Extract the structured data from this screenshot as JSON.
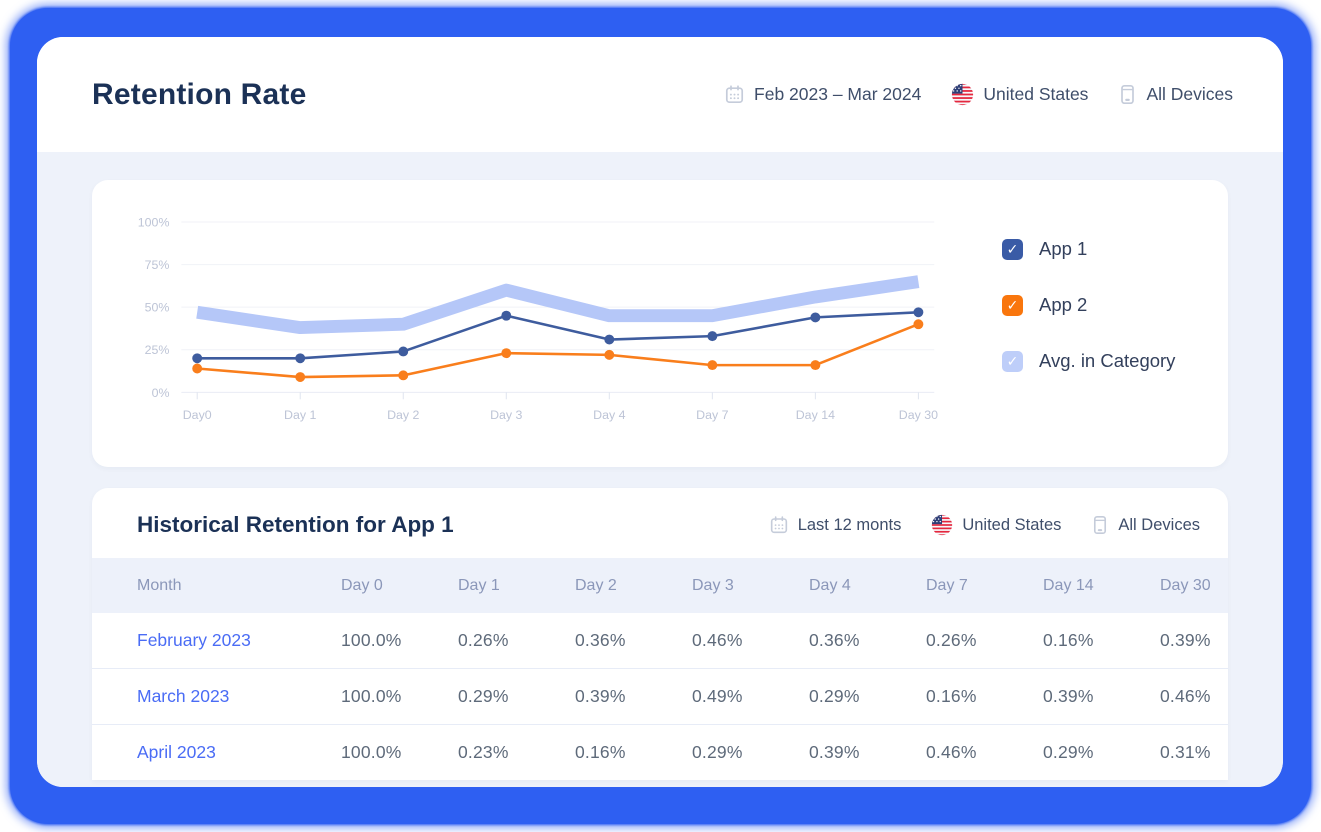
{
  "header": {
    "title": "Retention Rate",
    "filters": [
      {
        "icon": "calendar-icon",
        "label": "Feb 2023 – Mar 2024"
      },
      {
        "icon": "us-flag-icon",
        "label": "United States"
      },
      {
        "icon": "mobile-icon",
        "label": "All Devices"
      }
    ]
  },
  "chart_data": {
    "type": "line",
    "x_labels": [
      "Day0",
      "Day 1",
      "Day 2",
      "Day 3",
      "Day 4",
      "Day 7",
      "Day 14",
      "Day 30"
    ],
    "y_ticks": [
      "100%",
      "75%",
      "50%",
      "25%",
      "0%"
    ],
    "y_tick_values": [
      100,
      75,
      50,
      25,
      0
    ],
    "ylim": [
      0,
      100
    ],
    "grid": "horizontal",
    "legend_position": "right",
    "series": [
      {
        "name": "App 1",
        "style": "line-dots",
        "checked": true,
        "color": "#3E5C9E",
        "checkbox_color": "#3A5BA6",
        "values": [
          20,
          20,
          24,
          45,
          31,
          33,
          44,
          47
        ]
      },
      {
        "name": "App 2",
        "style": "line-dots",
        "checked": true,
        "color": "#F97E1C",
        "checkbox_color": "#F9760D",
        "values": [
          14,
          9,
          10,
          23,
          22,
          16,
          16,
          40
        ]
      },
      {
        "name": "Avg. in Category",
        "style": "band",
        "checked": true,
        "color": "#B5C7F8",
        "checkbox_color": "#BECEF9",
        "values": [
          47,
          38,
          40,
          60,
          45,
          45,
          56,
          65
        ]
      }
    ]
  },
  "table": {
    "title": "Historical Retention for App 1",
    "filters": [
      {
        "icon": "calendar-icon",
        "label": "Last 12 monts"
      },
      {
        "icon": "us-flag-icon",
        "label": "United States"
      },
      {
        "icon": "mobile-icon",
        "label": "All Devices"
      }
    ],
    "columns": [
      "Month",
      "Day 0",
      "Day 1",
      "Day 2",
      "Day 3",
      "Day 4",
      "Day 7",
      "Day 14",
      "Day 30"
    ],
    "rows": [
      {
        "month": "February 2023",
        "values": [
          "100.0%",
          "0.26%",
          "0.36%",
          "0.46%",
          "0.36%",
          "0.26%",
          "0.16%",
          "0.39%"
        ]
      },
      {
        "month": "March 2023",
        "values": [
          "100.0%",
          "0.29%",
          "0.39%",
          "0.49%",
          "0.29%",
          "0.16%",
          "0.39%",
          "0.46%"
        ]
      },
      {
        "month": "April 2023",
        "values": [
          "100.0%",
          "0.23%",
          "0.16%",
          "0.29%",
          "0.39%",
          "0.46%",
          "0.29%",
          "0.31%"
        ]
      }
    ]
  },
  "glyphs": {
    "check": "✓"
  },
  "colors": {
    "frame_blue": "#2E5FF2",
    "body_background": "#EEF2FA",
    "title_navy": "#1B3156",
    "link_blue": "#4A6CF5",
    "app1": "#3E5C9E",
    "app2": "#F97E1C",
    "avg_band": "#B5C7F8"
  }
}
